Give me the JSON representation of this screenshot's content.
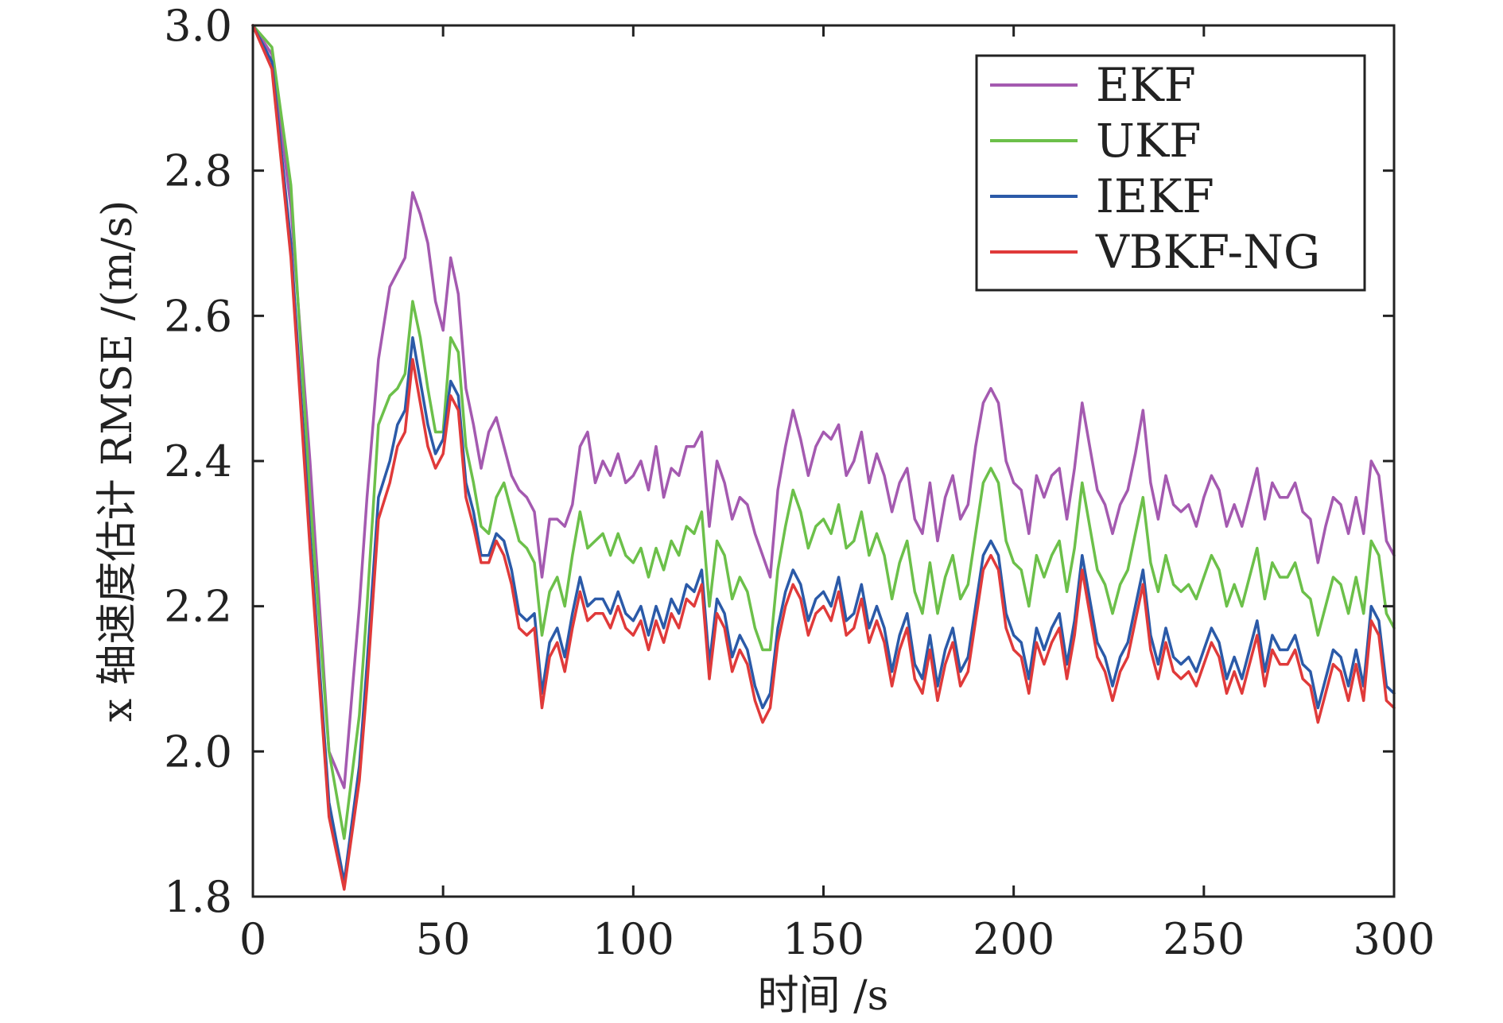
{
  "chart_data": {
    "type": "line",
    "title": "",
    "xlabel": "时间 /s",
    "ylabel": "x 轴速度估计 RMSE /(m/s)",
    "xlim": [
      0,
      300
    ],
    "ylim": [
      1.8,
      3.0
    ],
    "xticks": [
      "0",
      "50",
      "100",
      "150",
      "200",
      "250",
      "300"
    ],
    "yticks": [
      "1.8",
      "2.0",
      "2.2",
      "2.4",
      "2.6",
      "2.8",
      "3.0"
    ],
    "grid": false,
    "legend_position": "top-right",
    "x": [
      0,
      5,
      10,
      15,
      20,
      24,
      28,
      30,
      33,
      36,
      38,
      40,
      42,
      44,
      46,
      48,
      50,
      52,
      54,
      56,
      58,
      60,
      62,
      64,
      66,
      68,
      70,
      72,
      74,
      76,
      78,
      80,
      82,
      84,
      86,
      88,
      90,
      92,
      94,
      96,
      98,
      100,
      102,
      104,
      106,
      108,
      110,
      112,
      114,
      116,
      118,
      120,
      122,
      124,
      126,
      128,
      130,
      132,
      134,
      136,
      138,
      140,
      142,
      144,
      146,
      148,
      150,
      152,
      154,
      156,
      158,
      160,
      162,
      164,
      166,
      168,
      170,
      172,
      174,
      176,
      178,
      180,
      182,
      184,
      186,
      188,
      190,
      192,
      194,
      196,
      198,
      200,
      202,
      204,
      206,
      208,
      210,
      212,
      214,
      216,
      218,
      220,
      222,
      224,
      226,
      228,
      230,
      232,
      234,
      236,
      238,
      240,
      242,
      244,
      246,
      248,
      250,
      252,
      254,
      256,
      258,
      260,
      262,
      264,
      266,
      268,
      270,
      272,
      274,
      276,
      278,
      280,
      282,
      284,
      286,
      288,
      290,
      292,
      294,
      296,
      298,
      300
    ],
    "series": [
      {
        "name": "EKF",
        "color": "#a45ab0",
        "values": [
          3.0,
          2.96,
          2.75,
          2.4,
          2.0,
          1.95,
          2.2,
          2.35,
          2.54,
          2.64,
          2.66,
          2.68,
          2.77,
          2.74,
          2.7,
          2.62,
          2.58,
          2.68,
          2.63,
          2.5,
          2.45,
          2.39,
          2.44,
          2.46,
          2.42,
          2.38,
          2.36,
          2.35,
          2.33,
          2.24,
          2.32,
          2.32,
          2.31,
          2.34,
          2.42,
          2.44,
          2.37,
          2.4,
          2.38,
          2.41,
          2.37,
          2.38,
          2.4,
          2.36,
          2.42,
          2.35,
          2.39,
          2.38,
          2.42,
          2.42,
          2.44,
          2.31,
          2.4,
          2.37,
          2.32,
          2.35,
          2.34,
          2.3,
          2.27,
          2.24,
          2.36,
          2.42,
          2.47,
          2.43,
          2.38,
          2.42,
          2.44,
          2.43,
          2.45,
          2.38,
          2.4,
          2.44,
          2.37,
          2.41,
          2.38,
          2.33,
          2.37,
          2.39,
          2.32,
          2.3,
          2.37,
          2.29,
          2.35,
          2.38,
          2.32,
          2.34,
          2.42,
          2.48,
          2.5,
          2.48,
          2.4,
          2.37,
          2.36,
          2.3,
          2.38,
          2.35,
          2.38,
          2.39,
          2.32,
          2.39,
          2.48,
          2.42,
          2.36,
          2.34,
          2.3,
          2.34,
          2.36,
          2.41,
          2.47,
          2.37,
          2.32,
          2.38,
          2.34,
          2.33,
          2.34,
          2.31,
          2.35,
          2.38,
          2.36,
          2.31,
          2.34,
          2.31,
          2.35,
          2.39,
          2.32,
          2.37,
          2.35,
          2.35,
          2.37,
          2.33,
          2.32,
          2.26,
          2.31,
          2.35,
          2.34,
          2.3,
          2.35,
          2.3,
          2.4,
          2.38,
          2.29,
          2.27
        ]
      },
      {
        "name": "UKF",
        "color": "#6cc04a",
        "values": [
          3.0,
          2.97,
          2.78,
          2.35,
          2.0,
          1.88,
          2.05,
          2.2,
          2.45,
          2.49,
          2.5,
          2.52,
          2.62,
          2.57,
          2.5,
          2.44,
          2.44,
          2.57,
          2.55,
          2.42,
          2.37,
          2.31,
          2.3,
          2.35,
          2.37,
          2.33,
          2.29,
          2.28,
          2.26,
          2.16,
          2.22,
          2.24,
          2.2,
          2.27,
          2.33,
          2.28,
          2.29,
          2.3,
          2.27,
          2.3,
          2.27,
          2.26,
          2.28,
          2.24,
          2.28,
          2.25,
          2.29,
          2.27,
          2.31,
          2.3,
          2.33,
          2.2,
          2.29,
          2.27,
          2.21,
          2.24,
          2.22,
          2.17,
          2.14,
          2.14,
          2.25,
          2.31,
          2.36,
          2.33,
          2.28,
          2.31,
          2.32,
          2.3,
          2.34,
          2.28,
          2.29,
          2.33,
          2.27,
          2.3,
          2.27,
          2.21,
          2.26,
          2.29,
          2.22,
          2.19,
          2.26,
          2.19,
          2.24,
          2.27,
          2.21,
          2.23,
          2.3,
          2.37,
          2.39,
          2.37,
          2.29,
          2.26,
          2.25,
          2.2,
          2.27,
          2.24,
          2.27,
          2.29,
          2.22,
          2.28,
          2.37,
          2.31,
          2.25,
          2.23,
          2.19,
          2.23,
          2.25,
          2.3,
          2.35,
          2.26,
          2.22,
          2.27,
          2.23,
          2.22,
          2.23,
          2.21,
          2.24,
          2.27,
          2.25,
          2.2,
          2.23,
          2.2,
          2.24,
          2.28,
          2.21,
          2.26,
          2.24,
          2.24,
          2.26,
          2.22,
          2.21,
          2.16,
          2.2,
          2.24,
          2.23,
          2.19,
          2.24,
          2.19,
          2.29,
          2.27,
          2.19,
          2.17
        ]
      },
      {
        "name": "IEKF",
        "color": "#2b5aa8",
        "values": [
          3.0,
          2.95,
          2.7,
          2.3,
          1.93,
          1.82,
          1.98,
          2.12,
          2.35,
          2.4,
          2.45,
          2.47,
          2.57,
          2.51,
          2.45,
          2.41,
          2.43,
          2.51,
          2.49,
          2.37,
          2.33,
          2.27,
          2.27,
          2.3,
          2.29,
          2.25,
          2.19,
          2.18,
          2.19,
          2.08,
          2.15,
          2.17,
          2.13,
          2.19,
          2.24,
          2.2,
          2.21,
          2.21,
          2.19,
          2.22,
          2.19,
          2.18,
          2.2,
          2.16,
          2.2,
          2.17,
          2.21,
          2.19,
          2.23,
          2.22,
          2.25,
          2.12,
          2.21,
          2.19,
          2.13,
          2.16,
          2.14,
          2.09,
          2.06,
          2.08,
          2.17,
          2.22,
          2.25,
          2.23,
          2.18,
          2.21,
          2.22,
          2.2,
          2.24,
          2.18,
          2.19,
          2.23,
          2.17,
          2.2,
          2.17,
          2.11,
          2.16,
          2.19,
          2.12,
          2.1,
          2.16,
          2.09,
          2.14,
          2.17,
          2.11,
          2.13,
          2.2,
          2.27,
          2.29,
          2.27,
          2.19,
          2.16,
          2.15,
          2.1,
          2.17,
          2.14,
          2.17,
          2.19,
          2.12,
          2.18,
          2.27,
          2.21,
          2.15,
          2.13,
          2.09,
          2.13,
          2.15,
          2.2,
          2.25,
          2.16,
          2.12,
          2.17,
          2.13,
          2.12,
          2.13,
          2.11,
          2.14,
          2.17,
          2.15,
          2.1,
          2.13,
          2.1,
          2.14,
          2.18,
          2.11,
          2.16,
          2.14,
          2.14,
          2.16,
          2.12,
          2.11,
          2.06,
          2.1,
          2.14,
          2.13,
          2.09,
          2.14,
          2.09,
          2.2,
          2.18,
          2.09,
          2.08
        ]
      },
      {
        "name": "VBKF-NG",
        "color": "#e03a3a",
        "values": [
          3.0,
          2.94,
          2.68,
          2.28,
          1.91,
          1.81,
          1.96,
          2.09,
          2.32,
          2.37,
          2.42,
          2.44,
          2.54,
          2.48,
          2.42,
          2.39,
          2.41,
          2.49,
          2.47,
          2.35,
          2.31,
          2.26,
          2.26,
          2.29,
          2.27,
          2.23,
          2.17,
          2.16,
          2.17,
          2.06,
          2.13,
          2.15,
          2.11,
          2.17,
          2.22,
          2.18,
          2.19,
          2.19,
          2.17,
          2.2,
          2.17,
          2.16,
          2.18,
          2.14,
          2.18,
          2.15,
          2.19,
          2.17,
          2.21,
          2.2,
          2.23,
          2.1,
          2.19,
          2.17,
          2.11,
          2.14,
          2.12,
          2.07,
          2.04,
          2.06,
          2.15,
          2.2,
          2.23,
          2.21,
          2.16,
          2.19,
          2.2,
          2.18,
          2.22,
          2.16,
          2.17,
          2.21,
          2.15,
          2.18,
          2.15,
          2.09,
          2.14,
          2.17,
          2.1,
          2.08,
          2.14,
          2.07,
          2.12,
          2.15,
          2.09,
          2.11,
          2.18,
          2.25,
          2.27,
          2.25,
          2.17,
          2.14,
          2.13,
          2.08,
          2.15,
          2.12,
          2.15,
          2.17,
          2.1,
          2.16,
          2.25,
          2.19,
          2.13,
          2.11,
          2.07,
          2.11,
          2.13,
          2.18,
          2.23,
          2.14,
          2.1,
          2.15,
          2.11,
          2.1,
          2.11,
          2.09,
          2.12,
          2.15,
          2.13,
          2.08,
          2.11,
          2.08,
          2.12,
          2.16,
          2.09,
          2.14,
          2.12,
          2.12,
          2.14,
          2.1,
          2.09,
          2.04,
          2.08,
          2.12,
          2.11,
          2.07,
          2.12,
          2.07,
          2.18,
          2.16,
          2.07,
          2.06
        ]
      }
    ]
  }
}
